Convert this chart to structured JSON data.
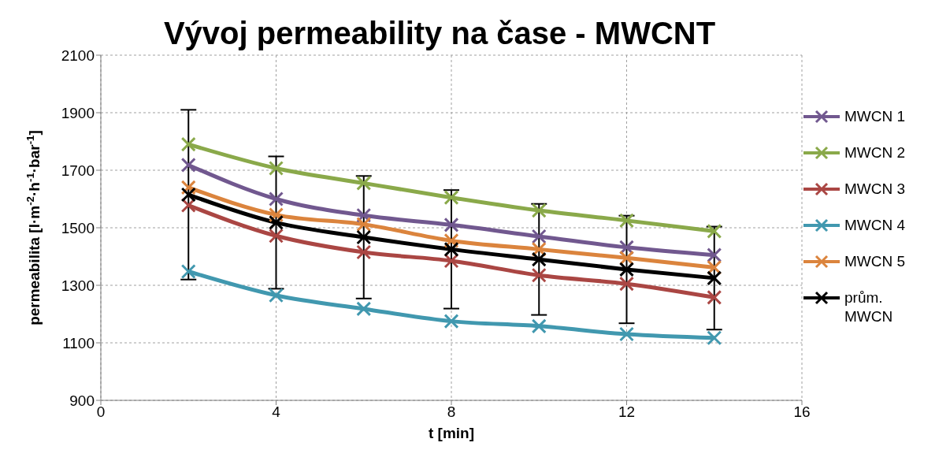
{
  "chart_data": {
    "type": "line",
    "title": "Vývoj permeability na čase - MWCNT",
    "xlabel": "t [min]",
    "ylabel": "permeabilita [l·m$^{-2}$·h$^{-1}$·bar$^{-1}$]",
    "x": [
      2,
      4,
      6,
      8,
      10,
      12,
      14
    ],
    "series": [
      {
        "name": "MWCN 1",
        "color": "#71588f",
        "values": [
          1718,
          1600,
          1543,
          1510,
          1470,
          1432,
          1405
        ]
      },
      {
        "name": "MWCN 2",
        "color": "#8aa94a",
        "values": [
          1790,
          1707,
          1655,
          1605,
          1560,
          1525,
          1488
        ]
      },
      {
        "name": "MWCN 3",
        "color": "#aa4643",
        "values": [
          1578,
          1472,
          1415,
          1385,
          1335,
          1305,
          1258
        ]
      },
      {
        "name": "MWCN 4",
        "color": "#4198af",
        "values": [
          1348,
          1265,
          1218,
          1175,
          1158,
          1130,
          1117
        ]
      },
      {
        "name": "MWCN 5",
        "color": "#db843d",
        "values": [
          1640,
          1545,
          1512,
          1455,
          1425,
          1395,
          1362
        ]
      },
      {
        "name": "prům. MWCN",
        "color": "#000000",
        "values": [
          1615,
          1518,
          1467,
          1425,
          1390,
          1355,
          1325
        ],
        "errors": [
          295,
          230,
          213,
          206,
          193,
          187,
          179
        ]
      }
    ],
    "xlim": [
      0,
      16
    ],
    "xticks": [
      0,
      4,
      8,
      12,
      16
    ],
    "ylim": [
      900,
      2100
    ],
    "yticks": [
      900,
      1100,
      1300,
      1500,
      1700,
      1900,
      2100
    ],
    "grid": true,
    "legend": "right",
    "marker": "cross",
    "line_style": "solid"
  }
}
